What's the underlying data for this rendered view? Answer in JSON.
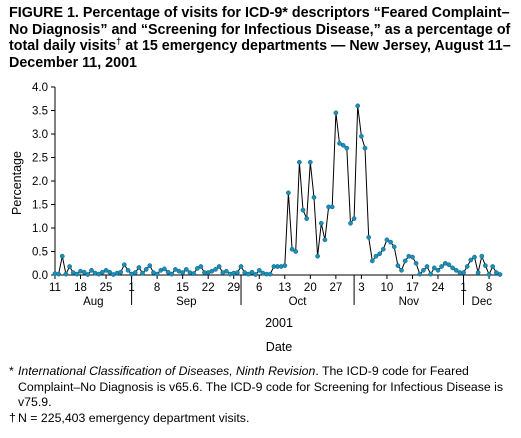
{
  "title": {
    "part1": "FIGURE 1. Percentage of visits for ICD-9* descriptors “Feared Complaint–No Diagnosis” and “Screening for Infectious Disease,” as a percentage of total daily visits",
    "dagger": "†",
    "part2": " at 15 emergency departments — New Jersey, August 11–December 11, 2001"
  },
  "chart_data": {
    "type": "line",
    "ylabel": "Percentage",
    "ylim": [
      0,
      4.0
    ],
    "yticks": [
      "0.0",
      "0.5",
      "1.0",
      "1.5",
      "2.0",
      "2.5",
      "3.0",
      "3.5",
      "4.0"
    ],
    "xlim": [
      "2001-08-11",
      "2001-12-11"
    ],
    "x_day_ticks": [
      {
        "label": "11",
        "date": "2001-08-11"
      },
      {
        "label": "18",
        "date": "2001-08-18"
      },
      {
        "label": "25",
        "date": "2001-08-25"
      },
      {
        "label": "1",
        "date": "2001-09-01"
      },
      {
        "label": "8",
        "date": "2001-09-08"
      },
      {
        "label": "15",
        "date": "2001-09-15"
      },
      {
        "label": "22",
        "date": "2001-09-22"
      },
      {
        "label": "29",
        "date": "2001-09-29"
      },
      {
        "label": "6",
        "date": "2001-10-06"
      },
      {
        "label": "13",
        "date": "2001-10-13"
      },
      {
        "label": "20",
        "date": "2001-10-20"
      },
      {
        "label": "27",
        "date": "2001-10-27"
      },
      {
        "label": "3",
        "date": "2001-11-03"
      },
      {
        "label": "10",
        "date": "2001-11-10"
      },
      {
        "label": "17",
        "date": "2001-11-17"
      },
      {
        "label": "24",
        "date": "2001-11-24"
      },
      {
        "label": "1",
        "date": "2001-12-01"
      },
      {
        "label": "8",
        "date": "2001-12-08"
      }
    ],
    "months": [
      {
        "label": "Aug",
        "start": "2001-08-11",
        "end": "2001-09-01"
      },
      {
        "label": "Sep",
        "start": "2001-09-01",
        "end": "2001-10-01"
      },
      {
        "label": "Oct",
        "start": "2001-10-01",
        "end": "2001-11-01"
      },
      {
        "label": "Nov",
        "start": "2001-11-01",
        "end": "2001-12-01"
      },
      {
        "label": "Dec",
        "start": "2001-12-01",
        "end": "2001-12-11"
      }
    ],
    "year_label": "2001",
    "xlabel": "Date",
    "series_color": "#1a8fb8",
    "line_color": "#000000",
    "x": [
      "2001-08-11",
      "2001-08-12",
      "2001-08-13",
      "2001-08-14",
      "2001-08-15",
      "2001-08-16",
      "2001-08-17",
      "2001-08-18",
      "2001-08-19",
      "2001-08-20",
      "2001-08-21",
      "2001-08-22",
      "2001-08-23",
      "2001-08-24",
      "2001-08-25",
      "2001-08-26",
      "2001-08-27",
      "2001-08-28",
      "2001-08-29",
      "2001-08-30",
      "2001-08-31",
      "2001-09-01",
      "2001-09-02",
      "2001-09-03",
      "2001-09-04",
      "2001-09-05",
      "2001-09-06",
      "2001-09-07",
      "2001-09-08",
      "2001-09-09",
      "2001-09-10",
      "2001-09-11",
      "2001-09-12",
      "2001-09-13",
      "2001-09-14",
      "2001-09-15",
      "2001-09-16",
      "2001-09-17",
      "2001-09-18",
      "2001-09-19",
      "2001-09-20",
      "2001-09-21",
      "2001-09-22",
      "2001-09-23",
      "2001-09-24",
      "2001-09-25",
      "2001-09-26",
      "2001-09-27",
      "2001-09-28",
      "2001-09-29",
      "2001-09-30",
      "2001-10-01",
      "2001-10-02",
      "2001-10-03",
      "2001-10-04",
      "2001-10-05",
      "2001-10-06",
      "2001-10-07",
      "2001-10-08",
      "2001-10-09",
      "2001-10-10",
      "2001-10-11",
      "2001-10-12",
      "2001-10-13",
      "2001-10-14",
      "2001-10-15",
      "2001-10-16",
      "2001-10-17",
      "2001-10-18",
      "2001-10-19",
      "2001-10-20",
      "2001-10-21",
      "2001-10-22",
      "2001-10-23",
      "2001-10-24",
      "2001-10-25",
      "2001-10-26",
      "2001-10-27",
      "2001-10-28",
      "2001-10-29",
      "2001-10-30",
      "2001-10-31",
      "2001-11-01",
      "2001-11-02",
      "2001-11-03",
      "2001-11-04",
      "2001-11-05",
      "2001-11-06",
      "2001-11-07",
      "2001-11-08",
      "2001-11-09",
      "2001-11-10",
      "2001-11-11",
      "2001-11-12",
      "2001-11-13",
      "2001-11-14",
      "2001-11-15",
      "2001-11-16",
      "2001-11-17",
      "2001-11-18",
      "2001-11-19",
      "2001-11-20",
      "2001-11-21",
      "2001-11-22",
      "2001-11-23",
      "2001-11-24",
      "2001-11-25",
      "2001-11-26",
      "2001-11-27",
      "2001-11-28",
      "2001-11-29",
      "2001-11-30",
      "2001-12-01",
      "2001-12-02",
      "2001-12-03",
      "2001-12-04",
      "2001-12-05",
      "2001-12-06",
      "2001-12-07",
      "2001-12-08",
      "2001-12-09",
      "2001-12-10",
      "2001-12-11"
    ],
    "y": [
      0.03,
      0.02,
      0.4,
      0.02,
      0.18,
      0.05,
      0.02,
      0.08,
      0.06,
      0.01,
      0.1,
      0.04,
      0.02,
      0.06,
      0.1,
      0.06,
      0.01,
      0.04,
      0.06,
      0.22,
      0.1,
      0.02,
      0.05,
      0.16,
      0.04,
      0.12,
      0.2,
      0.05,
      0.02,
      0.1,
      0.13,
      0.06,
      0.02,
      0.12,
      0.08,
      0.05,
      0.12,
      0.05,
      0.03,
      0.14,
      0.18,
      0.05,
      0.05,
      0.08,
      0.12,
      0.18,
      0.05,
      0.08,
      0.02,
      0.04,
      0.05,
      0.18,
      0.05,
      0.02,
      0.06,
      0.01,
      0.1,
      0.04,
      0.02,
      0.02,
      0.18,
      0.18,
      0.18,
      0.2,
      1.75,
      0.55,
      0.5,
      2.4,
      1.38,
      1.2,
      2.4,
      1.65,
      0.4,
      1.1,
      0.75,
      1.45,
      1.45,
      3.45,
      2.8,
      2.76,
      2.7,
      1.1,
      1.2,
      3.6,
      2.95,
      2.7,
      0.8,
      0.3,
      0.4,
      0.45,
      0.55,
      0.75,
      0.7,
      0.6,
      0.2,
      0.1,
      0.3,
      0.4,
      0.38,
      0.25,
      0.02,
      0.1,
      0.18,
      0.02,
      0.15,
      0.1,
      0.18,
      0.25,
      0.22,
      0.15,
      0.1,
      0.05,
      0.05,
      0.18,
      0.32,
      0.38,
      0.05,
      0.4,
      0.2,
      0.01,
      0.18,
      0.05,
      0.01
    ]
  },
  "footnotes": {
    "f1_mark": "*",
    "f1_italic": "International Classification of Diseases, Ninth Revision",
    "f1_rest": ". The ICD-9 code for Feared Complaint–No Diagnosis is v65.6. The ICD-9 code for Screening for Infectious Disease is v75.9.",
    "f2_mark": "†",
    "f2_text": "N = 225,403 emergency department visits."
  }
}
